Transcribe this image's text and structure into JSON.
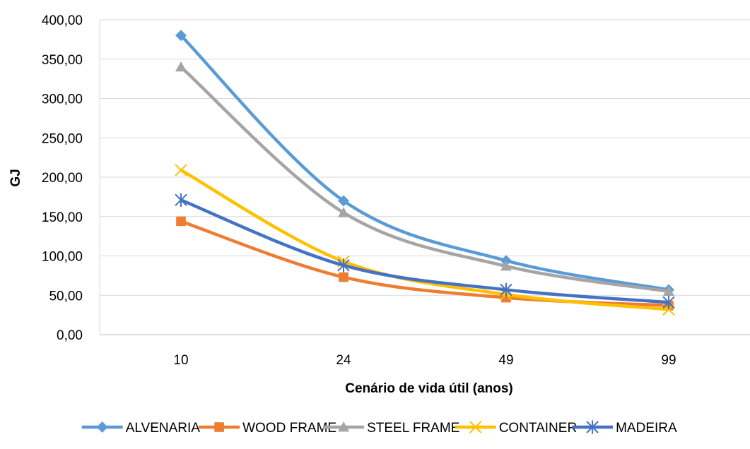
{
  "chart_data": {
    "type": "line",
    "title": "",
    "xlabel": "Cenário de vida útil (anos)",
    "ylabel": "GJ",
    "categories": [
      "10",
      "24",
      "49",
      "99"
    ],
    "y_ticks": [
      "0,00",
      "50,00",
      "100,00",
      "150,00",
      "200,00",
      "250,00",
      "300,00",
      "350,00",
      "400,00"
    ],
    "ylim": [
      0,
      400
    ],
    "grid": "horizontal",
    "smooth": true,
    "legend_position": "bottom",
    "series": [
      {
        "name": "ALVENARIA",
        "color": "#5B9BD5",
        "marker": "diamond",
        "values": [
          380,
          170,
          94,
          57
        ]
      },
      {
        "name": "WOOD FRAME",
        "color": "#ED7D31",
        "marker": "square",
        "values": [
          144,
          73,
          47,
          37
        ]
      },
      {
        "name": "STEEL FRAME",
        "color": "#A5A5A5",
        "marker": "triangle",
        "values": [
          340,
          155,
          87,
          55
        ]
      },
      {
        "name": "CONTAINER",
        "color": "#FFC000",
        "marker": "x",
        "values": [
          209,
          93,
          51,
          32
        ]
      },
      {
        "name": "MADEIRA",
        "color": "#4472C4",
        "marker": "star",
        "values": [
          171,
          88,
          57,
          41
        ]
      }
    ]
  }
}
